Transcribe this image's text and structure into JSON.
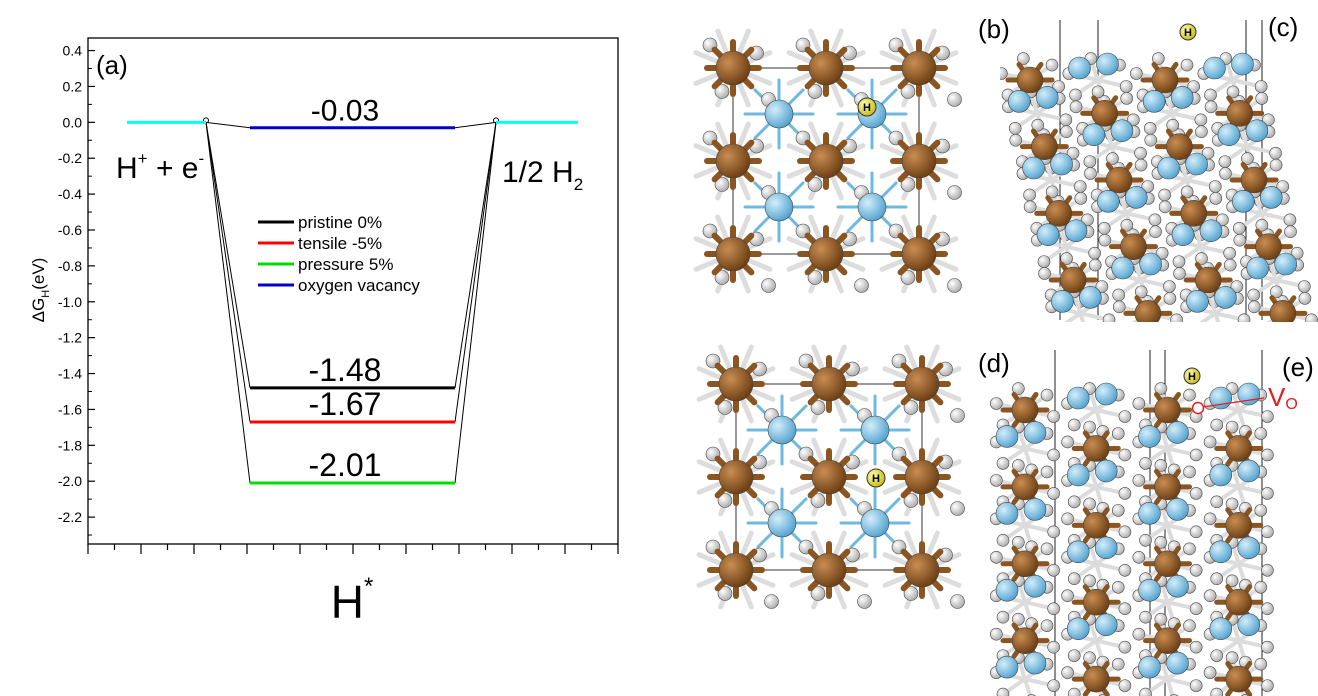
{
  "chart_data": {
    "type": "line",
    "panel_label": "(a)",
    "ylabel_main": "ΔG",
    "ylabel_sub": "H",
    "ylabel_unit": "(eV)",
    "xlabel_main": "H",
    "xlabel_sup": "*",
    "ylim": [
      -2.35,
      0.47
    ],
    "ticks": [
      "0.4",
      "0.2",
      "0.0",
      "-0.2",
      "-0.4",
      "-0.6",
      "-0.8",
      "-1.0",
      "-1.2",
      "-1.4",
      "-1.6",
      "-1.8",
      "-2.0",
      "-2.2"
    ],
    "tick_values": [
      0.4,
      0.2,
      0.0,
      -0.2,
      -0.4,
      -0.6,
      -0.8,
      -1.0,
      -1.2,
      -1.4,
      -1.6,
      -1.8,
      -2.0,
      -2.2
    ],
    "left_state": {
      "main": "H",
      "sup": "+",
      "tail": " + e",
      "supt": "-",
      "value": 0.0,
      "color": "#00ffff"
    },
    "right_state": {
      "main": "1/2 H",
      "sub": "2",
      "value": 0.0,
      "color": "#00ffff"
    },
    "series": [
      {
        "name": "pristine 0%",
        "value": -1.48,
        "label": "-1.48",
        "color": "#000000"
      },
      {
        "name": "tensile  -5%",
        "value": -1.67,
        "label": "-1.67",
        "color": "#ff0000"
      },
      {
        "name": "pressure 5%",
        "value": -2.01,
        "label": "-2.01",
        "color": "#00dd00"
      },
      {
        "name": "oxygen vacancy",
        "value": -0.03,
        "label": "-0.03",
        "color": "#0000cc"
      }
    ]
  },
  "panels": {
    "b_label": "(b)",
    "c_label": "(c)",
    "d_label": "(d)",
    "e_label": "(e)",
    "h_marker": "H",
    "vo_main": "V",
    "vo_sub": "O",
    "colors": {
      "metal": "#8a5520",
      "cation": "#6fb9e0",
      "oxygen": "#e6e6e6",
      "hydrogen": "#e8e020",
      "vacancy": "#e02020"
    }
  }
}
